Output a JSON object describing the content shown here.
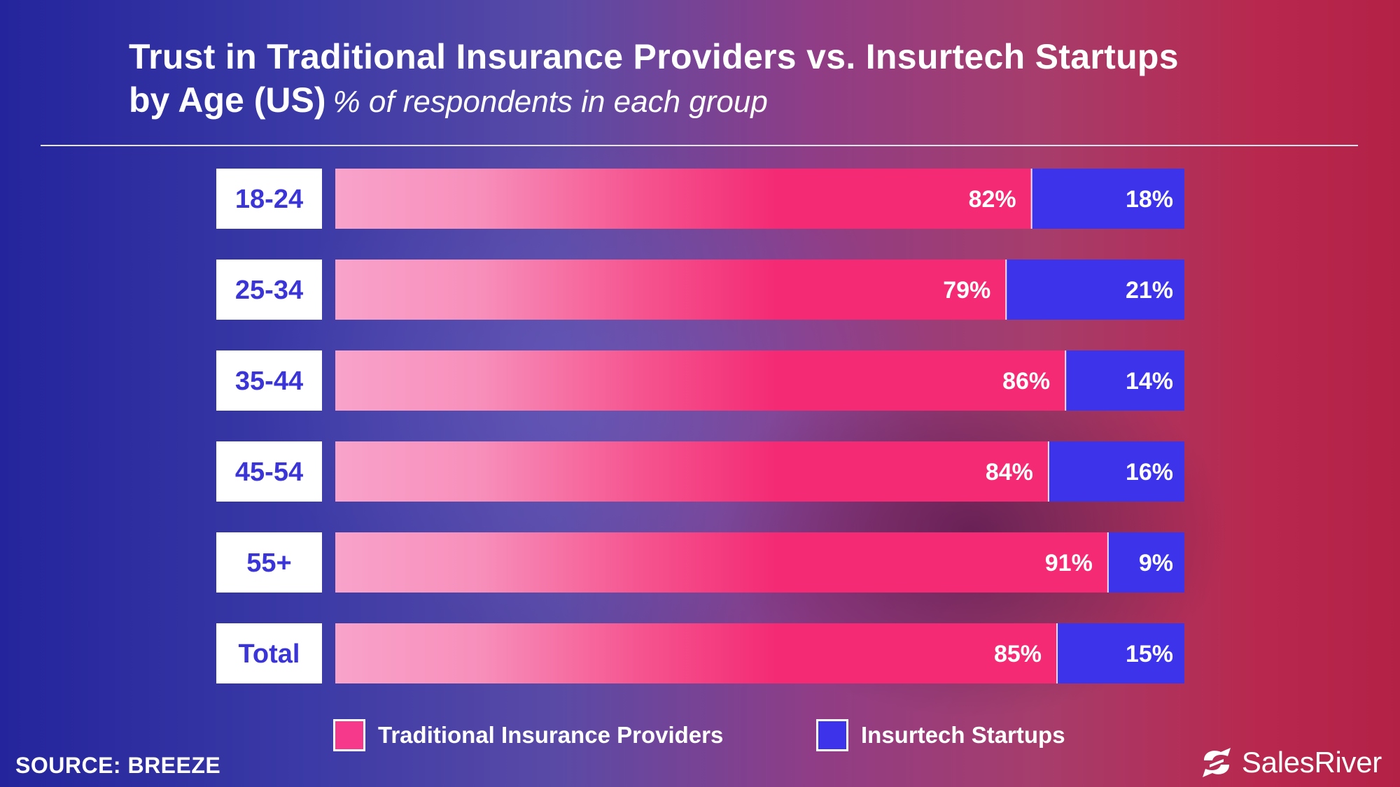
{
  "title": "Trust in Traditional Insurance Providers vs. Insurtech Startups",
  "subtitle_bold": "by Age (US)",
  "subtitle_italic": "% of respondents in each group",
  "source": "SOURCE: BREEZE",
  "brand": {
    "name": "SalesRiver",
    "icon": "salesriver-logo-icon"
  },
  "colors": {
    "traditional_light": "#f9a3ca",
    "traditional": "#f42a74",
    "insurtech": "#3c33ea",
    "label_box": "#ffffff",
    "label_text": "#3b35d8"
  },
  "legend": [
    {
      "label": "Traditional Insurance Providers",
      "color": "#f6398a"
    },
    {
      "label": "Insurtech Startups",
      "color": "#3c33ea"
    }
  ],
  "chart_data": {
    "type": "bar",
    "orientation": "horizontal",
    "stacked": true,
    "title": "Trust in Traditional Insurance Providers vs. Insurtech Startups by Age (US)",
    "subtitle": "% of respondents in each group",
    "categories": [
      "18-24",
      "25-34",
      "35-44",
      "45-54",
      "55+",
      "Total"
    ],
    "series": [
      {
        "name": "Traditional Insurance Providers",
        "values": [
          82,
          79,
          86,
          84,
          91,
          85
        ],
        "labels": [
          "82%",
          "79%",
          "86%",
          "84%",
          "91%",
          "85%"
        ]
      },
      {
        "name": "Insurtech Startups",
        "values": [
          18,
          21,
          14,
          16,
          9,
          15
        ],
        "labels": [
          "18%",
          "21%",
          "14%",
          "16%",
          "9%",
          "15%"
        ]
      }
    ],
    "xlim": [
      0,
      100
    ],
    "unit": "%",
    "grid": false,
    "legend_position": "bottom"
  }
}
